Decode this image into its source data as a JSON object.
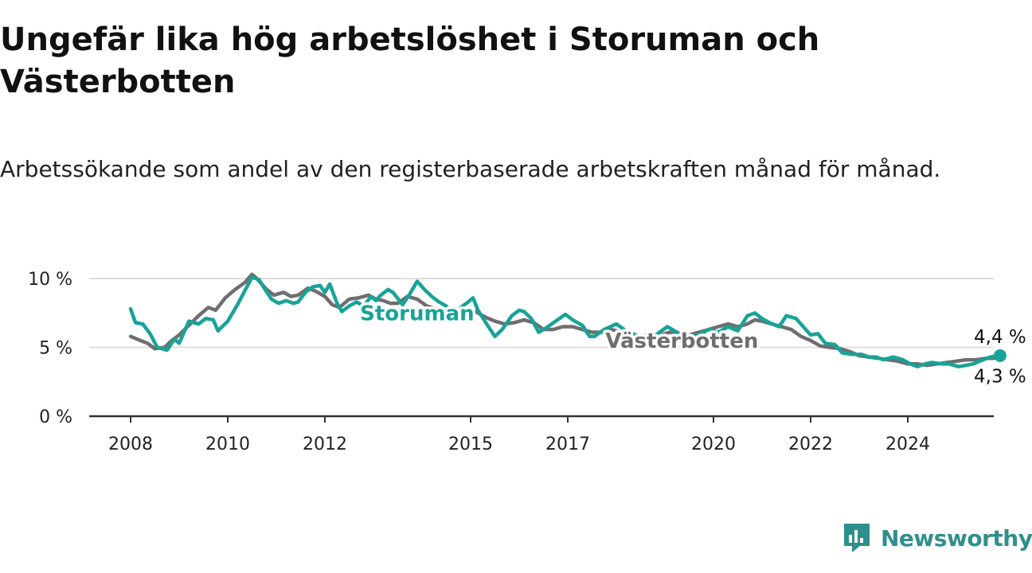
{
  "title": "Ungefär lika hög arbetslöshet i Storuman och Västerbotten",
  "subtitle": "Arbetssökande som andel av den registerbaserade arbetskraften månad för månad.",
  "brand": {
    "name": "Newsworthy",
    "icon": "newsworthy-logo-icon"
  },
  "colors": {
    "storuman": "#17a398",
    "vasterbotten": "#6e6e72",
    "grid": "#dddddd",
    "axis": "#333333",
    "brand": "#2f8f8c"
  },
  "chart_data": {
    "type": "line",
    "title": "Ungefär lika hög arbetslöshet i Storuman och Västerbotten",
    "subtitle": "Arbetssökande som andel av den registerbaserade arbetskraften månad för månad.",
    "x_unit": "year (monthly observations)",
    "y_unit": "%",
    "ylim": [
      0,
      10
    ],
    "xlim": [
      2008,
      2025.9
    ],
    "y_ticks": [
      0,
      5,
      10
    ],
    "y_tick_labels": [
      "0 %",
      "5 %",
      "10 %"
    ],
    "x_ticks": [
      2008,
      2010,
      2012,
      2015,
      2017,
      2020,
      2022,
      2024
    ],
    "x_tick_labels": [
      "2008",
      "2010",
      "2012",
      "2015",
      "2017",
      "2020",
      "2022",
      "2024"
    ],
    "grid": "horizontal",
    "legend": "inline labels on lines",
    "series": [
      {
        "name": "Storuman",
        "key": "storuman",
        "end_label": "4,4 %",
        "points": [
          [
            2008.0,
            7.8
          ],
          [
            2008.1,
            6.8
          ],
          [
            2008.25,
            6.7
          ],
          [
            2008.4,
            6.0
          ],
          [
            2008.55,
            5.0
          ],
          [
            2008.75,
            4.8
          ],
          [
            2008.9,
            5.6
          ],
          [
            2009.0,
            5.3
          ],
          [
            2009.2,
            6.9
          ],
          [
            2009.4,
            6.7
          ],
          [
            2009.55,
            7.1
          ],
          [
            2009.7,
            7.0
          ],
          [
            2009.8,
            6.2
          ],
          [
            2010.0,
            6.9
          ],
          [
            2010.2,
            8.1
          ],
          [
            2010.35,
            9.1
          ],
          [
            2010.5,
            10.1
          ],
          [
            2010.65,
            9.9
          ],
          [
            2010.75,
            9.3
          ],
          [
            2010.9,
            8.5
          ],
          [
            2011.05,
            8.2
          ],
          [
            2011.2,
            8.4
          ],
          [
            2011.35,
            8.2
          ],
          [
            2011.45,
            8.3
          ],
          [
            2011.6,
            9.0
          ],
          [
            2011.75,
            9.4
          ],
          [
            2011.9,
            9.5
          ],
          [
            2012.0,
            9.0
          ],
          [
            2012.1,
            9.6
          ],
          [
            2012.25,
            8.2
          ],
          [
            2012.35,
            7.6
          ],
          [
            2012.5,
            8.0
          ],
          [
            2012.65,
            8.3
          ],
          [
            2012.8,
            8.0
          ],
          [
            2012.95,
            8.7
          ],
          [
            2013.05,
            8.4
          ],
          [
            2013.15,
            8.8
          ],
          [
            2013.3,
            9.2
          ],
          [
            2013.4,
            9.0
          ],
          [
            2013.6,
            8.1
          ],
          [
            2013.75,
            8.9
          ],
          [
            2013.9,
            9.8
          ],
          [
            2014.05,
            9.2
          ],
          [
            2014.2,
            8.7
          ],
          [
            2014.35,
            8.3
          ],
          [
            2014.5,
            8.0
          ],
          [
            2014.65,
            7.3
          ],
          [
            2014.8,
            7.9
          ],
          [
            2014.95,
            8.3
          ],
          [
            2015.05,
            8.6
          ],
          [
            2015.15,
            7.7
          ],
          [
            2015.35,
            6.6
          ],
          [
            2015.5,
            5.8
          ],
          [
            2015.65,
            6.3
          ],
          [
            2015.85,
            7.3
          ],
          [
            2016.0,
            7.7
          ],
          [
            2016.1,
            7.6
          ],
          [
            2016.25,
            7.1
          ],
          [
            2016.4,
            6.1
          ],
          [
            2016.55,
            6.4
          ],
          [
            2016.75,
            6.9
          ],
          [
            2016.95,
            7.4
          ],
          [
            2017.1,
            7.0
          ],
          [
            2017.3,
            6.6
          ],
          [
            2017.45,
            5.8
          ],
          [
            2017.55,
            5.8
          ],
          [
            2017.75,
            6.3
          ],
          [
            2018.0,
            6.7
          ],
          [
            2018.2,
            6.2
          ],
          [
            2018.4,
            5.9
          ],
          [
            2018.55,
            5.7
          ],
          [
            2018.7,
            5.7
          ],
          [
            2018.85,
            6.0
          ],
          [
            2019.05,
            6.5
          ],
          [
            2019.3,
            6.0
          ],
          [
            2019.5,
            5.8
          ],
          [
            2019.7,
            5.9
          ],
          [
            2019.9,
            6.3
          ],
          [
            2020.1,
            6.1
          ],
          [
            2020.3,
            6.5
          ],
          [
            2020.5,
            6.2
          ],
          [
            2020.7,
            7.3
          ],
          [
            2020.85,
            7.5
          ],
          [
            2021.0,
            7.1
          ],
          [
            2021.15,
            6.8
          ],
          [
            2021.35,
            6.5
          ],
          [
            2021.5,
            7.3
          ],
          [
            2021.7,
            7.1
          ],
          [
            2021.85,
            6.5
          ],
          [
            2022.0,
            5.9
          ],
          [
            2022.15,
            6.0
          ],
          [
            2022.3,
            5.3
          ],
          [
            2022.5,
            5.2
          ],
          [
            2022.65,
            4.6
          ],
          [
            2022.85,
            4.5
          ],
          [
            2023.05,
            4.5
          ],
          [
            2023.2,
            4.3
          ],
          [
            2023.35,
            4.3
          ],
          [
            2023.5,
            4.1
          ],
          [
            2023.7,
            4.3
          ],
          [
            2023.9,
            4.1
          ],
          [
            2024.05,
            3.8
          ],
          [
            2024.2,
            3.6
          ],
          [
            2024.35,
            3.8
          ],
          [
            2024.5,
            3.9
          ],
          [
            2024.7,
            3.8
          ],
          [
            2024.85,
            3.8
          ],
          [
            2025.05,
            3.6
          ],
          [
            2025.2,
            3.7
          ],
          [
            2025.35,
            3.8
          ],
          [
            2025.55,
            4.1
          ],
          [
            2025.7,
            4.3
          ],
          [
            2025.9,
            4.4
          ]
        ]
      },
      {
        "name": "Västerbotten",
        "key": "vasterbotten",
        "end_label": "4,3 %",
        "points": [
          [
            2008.0,
            5.8
          ],
          [
            2008.2,
            5.5
          ],
          [
            2008.35,
            5.3
          ],
          [
            2008.5,
            4.9
          ],
          [
            2008.7,
            5.0
          ],
          [
            2008.85,
            5.5
          ],
          [
            2009.0,
            5.9
          ],
          [
            2009.2,
            6.6
          ],
          [
            2009.4,
            7.3
          ],
          [
            2009.6,
            7.9
          ],
          [
            2009.75,
            7.7
          ],
          [
            2009.95,
            8.6
          ],
          [
            2010.15,
            9.2
          ],
          [
            2010.35,
            9.7
          ],
          [
            2010.5,
            10.3
          ],
          [
            2010.6,
            10.0
          ],
          [
            2010.8,
            9.2
          ],
          [
            2010.95,
            8.8
          ],
          [
            2011.15,
            9.0
          ],
          [
            2011.3,
            8.7
          ],
          [
            2011.45,
            8.8
          ],
          [
            2011.65,
            9.3
          ],
          [
            2011.8,
            9.1
          ],
          [
            2012.0,
            8.7
          ],
          [
            2012.15,
            8.1
          ],
          [
            2012.3,
            7.9
          ],
          [
            2012.5,
            8.5
          ],
          [
            2012.7,
            8.6
          ],
          [
            2012.9,
            8.8
          ],
          [
            2013.05,
            8.5
          ],
          [
            2013.2,
            8.4
          ],
          [
            2013.35,
            8.2
          ],
          [
            2013.5,
            8.2
          ],
          [
            2013.7,
            8.7
          ],
          [
            2013.9,
            8.5
          ],
          [
            2014.1,
            8.0
          ],
          [
            2014.3,
            7.8
          ],
          [
            2014.5,
            7.7
          ],
          [
            2014.7,
            7.6
          ],
          [
            2014.9,
            7.6
          ],
          [
            2015.1,
            7.6
          ],
          [
            2015.3,
            7.2
          ],
          [
            2015.5,
            6.9
          ],
          [
            2015.7,
            6.7
          ],
          [
            2015.9,
            6.8
          ],
          [
            2016.1,
            7.0
          ],
          [
            2016.3,
            6.8
          ],
          [
            2016.5,
            6.3
          ],
          [
            2016.7,
            6.3
          ],
          [
            2016.9,
            6.5
          ],
          [
            2017.1,
            6.5
          ],
          [
            2017.3,
            6.3
          ],
          [
            2017.5,
            6.1
          ],
          [
            2017.7,
            6.1
          ],
          [
            2017.9,
            6.3
          ],
          [
            2018.1,
            6.1
          ],
          [
            2018.3,
            5.9
          ],
          [
            2018.5,
            5.8
          ],
          [
            2018.7,
            5.9
          ],
          [
            2018.9,
            5.9
          ],
          [
            2019.1,
            6.1
          ],
          [
            2019.3,
            6.0
          ],
          [
            2019.5,
            5.9
          ],
          [
            2019.7,
            6.1
          ],
          [
            2019.9,
            6.3
          ],
          [
            2020.1,
            6.5
          ],
          [
            2020.3,
            6.7
          ],
          [
            2020.5,
            6.5
          ],
          [
            2020.7,
            6.7
          ],
          [
            2020.85,
            7.0
          ],
          [
            2021.0,
            6.9
          ],
          [
            2021.2,
            6.7
          ],
          [
            2021.4,
            6.5
          ],
          [
            2021.6,
            6.3
          ],
          [
            2021.8,
            5.8
          ],
          [
            2022.0,
            5.5
          ],
          [
            2022.2,
            5.1
          ],
          [
            2022.4,
            5.0
          ],
          [
            2022.6,
            4.9
          ],
          [
            2022.8,
            4.7
          ],
          [
            2023.0,
            4.4
          ],
          [
            2023.2,
            4.3
          ],
          [
            2023.4,
            4.2
          ],
          [
            2023.6,
            4.1
          ],
          [
            2023.8,
            4.0
          ],
          [
            2024.0,
            3.8
          ],
          [
            2024.2,
            3.8
          ],
          [
            2024.4,
            3.7
          ],
          [
            2024.6,
            3.8
          ],
          [
            2024.8,
            3.9
          ],
          [
            2025.0,
            4.0
          ],
          [
            2025.2,
            4.1
          ],
          [
            2025.4,
            4.1
          ],
          [
            2025.6,
            4.2
          ],
          [
            2025.75,
            4.2
          ],
          [
            2025.9,
            4.3
          ]
        ],
        "end_point_hidden": true
      }
    ],
    "inline_labels": [
      {
        "series": "Storuman",
        "text": "Storuman",
        "at": [
          2013.9,
          7.5
        ]
      },
      {
        "series": "Västerbotten",
        "text": "Västerbotten",
        "at": [
          2019.35,
          5.5
        ]
      }
    ],
    "end_labels": [
      {
        "series": "Storuman",
        "text": "4,4 %",
        "position": "above"
      },
      {
        "series": "Västerbotten",
        "text": "4,3 %",
        "position": "below"
      }
    ]
  }
}
